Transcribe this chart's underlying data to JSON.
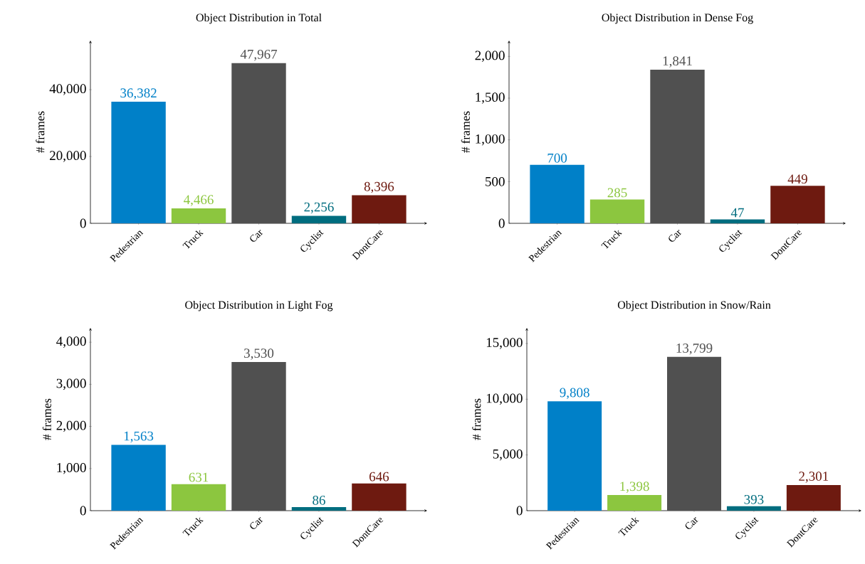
{
  "chart_data": [
    {
      "type": "bar",
      "title": "Object Distribution in Total",
      "ylabel": "# frames",
      "categories": [
        "Pedestrian",
        "Truck",
        "Car",
        "Cyclist",
        "DontCare"
      ],
      "values": [
        36382,
        4466,
        47967,
        2256,
        8396
      ],
      "value_labels": [
        "36,382",
        "4,466",
        "47,967",
        "2,256",
        "8,396"
      ],
      "colors": [
        "#0080c8",
        "#8cc63f",
        "#505050",
        "#006d7f",
        "#6e1a10"
      ],
      "ylim": [
        0,
        54700
      ],
      "yticks": [
        0,
        {
          "value": 20000,
          "label": "20,000"
        },
        {
          "value": 40000,
          "label": "40,000"
        }
      ]
    },
    {
      "type": "bar",
      "title": "Object Distribution in Dense Fog",
      "ylabel": "# frames",
      "categories": [
        "Pedestrian",
        "Truck",
        "Car",
        "Cyclist",
        "DontCare"
      ],
      "values": [
        700,
        285,
        1841,
        47,
        449
      ],
      "value_labels": [
        "700",
        "285",
        "1,841",
        "47",
        "449"
      ],
      "colors": [
        "#0080c8",
        "#8cc63f",
        "#505050",
        "#006d7f",
        "#6e1a10"
      ],
      "ylim": [
        0,
        2190
      ],
      "yticks": [
        0,
        500,
        {
          "value": 1000,
          "label": "1,000"
        },
        {
          "value": 1500,
          "label": "1,500"
        },
        {
          "value": 2000,
          "label": "2,000"
        }
      ]
    },
    {
      "type": "bar",
      "title": "Object Distribution in Light Fog",
      "ylabel": "# frames",
      "categories": [
        "Pedestrian",
        "Truck",
        "Car",
        "Cyclist",
        "DontCare"
      ],
      "values": [
        1563,
        631,
        3530,
        86,
        646
      ],
      "value_labels": [
        "1,563",
        "631",
        "3,530",
        "86",
        "646"
      ],
      "colors": [
        "#0080c8",
        "#8cc63f",
        "#505050",
        "#006d7f",
        "#6e1a10"
      ],
      "ylim": [
        0,
        4340
      ],
      "yticks": [
        0,
        {
          "value": 1000,
          "label": "1,000"
        },
        {
          "value": 2000,
          "label": "2,000"
        },
        {
          "value": 3000,
          "label": "3,000"
        },
        {
          "value": 4000,
          "label": "4,000"
        }
      ]
    },
    {
      "type": "bar",
      "title": "Object Distribution in Snow/Rain",
      "ylabel": "# frames",
      "categories": [
        "Pedestrian",
        "Truck",
        "Car",
        "Cyclist",
        "DontCare"
      ],
      "values": [
        9808,
        1398,
        13799,
        393,
        2301
      ],
      "value_labels": [
        "9,808",
        "1,398",
        "13,799",
        "393",
        "2,301"
      ],
      "colors": [
        "#0080c8",
        "#8cc63f",
        "#505050",
        "#006d7f",
        "#6e1a10"
      ],
      "ylim": [
        0,
        16400
      ],
      "yticks": [
        0,
        {
          "value": 5000,
          "label": "5,000"
        },
        {
          "value": 10000,
          "label": "10,000"
        },
        {
          "value": 15000,
          "label": "15,000"
        }
      ]
    }
  ]
}
